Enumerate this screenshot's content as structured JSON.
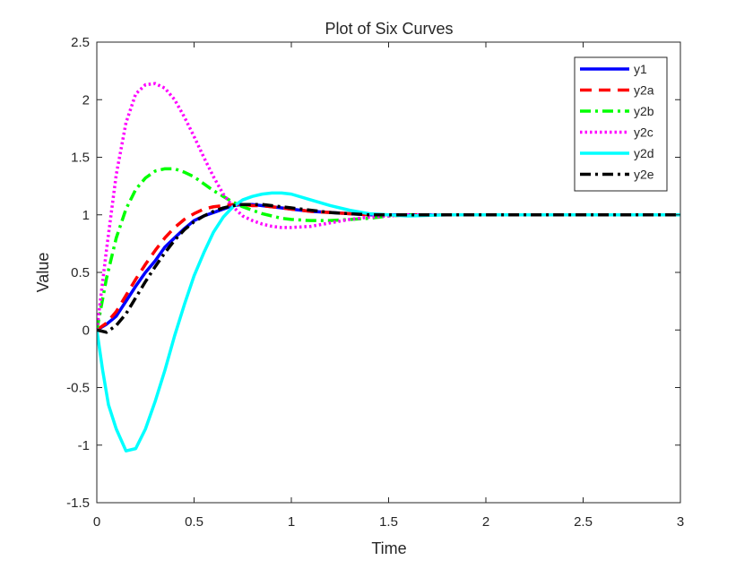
{
  "chart_data": {
    "type": "line",
    "title": "Plot of Six Curves",
    "xlabel": "Time",
    "ylabel": "Value",
    "xlim": [
      0,
      3
    ],
    "ylim": [
      -1.5,
      2.5
    ],
    "xticks": [
      0,
      0.5,
      1,
      1.5,
      2,
      2.5,
      3
    ],
    "xtick_labels": [
      "0",
      "0.5",
      "1",
      "1.5",
      "2",
      "2.5",
      "3"
    ],
    "yticks": [
      -1.5,
      -1,
      -0.5,
      0,
      0.5,
      1,
      1.5,
      2,
      2.5
    ],
    "ytick_labels": [
      "-1.5",
      "-1",
      "-0.5",
      "0",
      "0.5",
      "1",
      "1.5",
      "2",
      "2.5"
    ],
    "grid": false,
    "legend_position": "top-right",
    "series": [
      {
        "name": "y1",
        "color": "#0000ff",
        "style": "solid",
        "x": [
          0,
          0.05,
          0.1,
          0.15,
          0.2,
          0.25,
          0.3,
          0.35,
          0.4,
          0.45,
          0.5,
          0.55,
          0.6,
          0.65,
          0.7,
          0.75,
          0.8,
          0.85,
          0.9,
          0.95,
          1.0,
          1.1,
          1.2,
          1.3,
          1.4,
          1.5,
          1.6,
          1.8,
          2.0,
          2.5,
          3.0
        ],
        "y": [
          0,
          0.05,
          0.12,
          0.25,
          0.38,
          0.5,
          0.6,
          0.72,
          0.8,
          0.88,
          0.95,
          0.99,
          1.02,
          1.05,
          1.08,
          1.09,
          1.09,
          1.08,
          1.07,
          1.06,
          1.05,
          1.03,
          1.02,
          1.01,
          1.0,
          1.0,
          1.0,
          1.0,
          1.0,
          1.0,
          1.0
        ]
      },
      {
        "name": "y2a",
        "color": "#ff0000",
        "style": "dashed",
        "x": [
          0,
          0.05,
          0.1,
          0.15,
          0.2,
          0.25,
          0.3,
          0.35,
          0.4,
          0.45,
          0.5,
          0.55,
          0.6,
          0.65,
          0.7,
          0.75,
          0.8,
          0.85,
          0.9,
          0.95,
          1.0,
          1.1,
          1.2,
          1.3,
          1.4,
          1.5,
          1.6,
          1.8,
          2.0,
          2.5,
          3.0
        ],
        "y": [
          0,
          0.06,
          0.16,
          0.3,
          0.44,
          0.57,
          0.69,
          0.8,
          0.89,
          0.96,
          1.01,
          1.05,
          1.07,
          1.08,
          1.09,
          1.09,
          1.08,
          1.08,
          1.07,
          1.06,
          1.05,
          1.03,
          1.02,
          1.01,
          1.0,
          1.0,
          1.0,
          1.0,
          1.0,
          1.0,
          1.0
        ]
      },
      {
        "name": "y2b",
        "color": "#00ff00",
        "style": "dashdot",
        "x": [
          0,
          0.05,
          0.1,
          0.15,
          0.2,
          0.25,
          0.3,
          0.35,
          0.4,
          0.45,
          0.5,
          0.55,
          0.6,
          0.65,
          0.7,
          0.75,
          0.8,
          0.85,
          0.9,
          0.95,
          1.0,
          1.1,
          1.2,
          1.3,
          1.4,
          1.5,
          1.6,
          1.8,
          2.0,
          2.5,
          3.0
        ],
        "y": [
          0,
          0.45,
          0.8,
          1.05,
          1.22,
          1.32,
          1.38,
          1.4,
          1.4,
          1.37,
          1.33,
          1.27,
          1.21,
          1.16,
          1.11,
          1.07,
          1.04,
          1.01,
          0.99,
          0.97,
          0.96,
          0.95,
          0.95,
          0.96,
          0.97,
          0.99,
          1.0,
          1.0,
          1.0,
          1.0,
          1.0
        ]
      },
      {
        "name": "y2c",
        "color": "#ff00ff",
        "style": "dotted",
        "x": [
          0,
          0.05,
          0.1,
          0.15,
          0.2,
          0.25,
          0.3,
          0.35,
          0.4,
          0.45,
          0.5,
          0.55,
          0.6,
          0.65,
          0.7,
          0.75,
          0.8,
          0.85,
          0.9,
          0.95,
          1.0,
          1.1,
          1.2,
          1.3,
          1.4,
          1.5,
          1.6,
          1.8,
          2.0,
          2.5,
          3.0
        ],
        "y": [
          0,
          0.7,
          1.35,
          1.8,
          2.05,
          2.13,
          2.14,
          2.1,
          2.0,
          1.85,
          1.68,
          1.5,
          1.33,
          1.18,
          1.07,
          0.99,
          0.95,
          0.92,
          0.9,
          0.89,
          0.89,
          0.9,
          0.93,
          0.96,
          0.98,
          0.99,
          1.0,
          1.0,
          1.0,
          1.0,
          1.0
        ]
      },
      {
        "name": "y2d",
        "color": "#00ffff",
        "style": "solid",
        "x": [
          0,
          0.03,
          0.06,
          0.1,
          0.15,
          0.2,
          0.25,
          0.3,
          0.35,
          0.4,
          0.45,
          0.5,
          0.55,
          0.6,
          0.65,
          0.7,
          0.75,
          0.8,
          0.85,
          0.9,
          0.95,
          1.0,
          1.1,
          1.2,
          1.3,
          1.4,
          1.5,
          1.6,
          1.8,
          2.0,
          2.5,
          3.0
        ],
        "y": [
          0,
          -0.35,
          -0.65,
          -0.86,
          -1.05,
          -1.03,
          -0.86,
          -0.62,
          -0.35,
          -0.05,
          0.22,
          0.47,
          0.67,
          0.85,
          0.98,
          1.07,
          1.13,
          1.16,
          1.18,
          1.19,
          1.19,
          1.18,
          1.13,
          1.08,
          1.04,
          1.01,
          1.0,
          0.99,
          1.0,
          1.0,
          1.0,
          1.0
        ]
      },
      {
        "name": "y2e",
        "color": "#000000",
        "style": "dashdot",
        "x": [
          0,
          0.05,
          0.1,
          0.15,
          0.2,
          0.25,
          0.3,
          0.35,
          0.4,
          0.45,
          0.5,
          0.55,
          0.6,
          0.65,
          0.7,
          0.75,
          0.8,
          0.85,
          0.9,
          0.95,
          1.0,
          1.1,
          1.2,
          1.3,
          1.4,
          1.5,
          1.6,
          1.8,
          2.0,
          2.5,
          3.0
        ],
        "y": [
          0,
          -0.02,
          0.04,
          0.14,
          0.28,
          0.42,
          0.55,
          0.67,
          0.78,
          0.87,
          0.94,
          0.99,
          1.03,
          1.06,
          1.08,
          1.09,
          1.09,
          1.09,
          1.08,
          1.07,
          1.06,
          1.04,
          1.02,
          1.01,
          1.0,
          1.0,
          1.0,
          1.0,
          1.0,
          1.0,
          1.0
        ]
      }
    ]
  }
}
